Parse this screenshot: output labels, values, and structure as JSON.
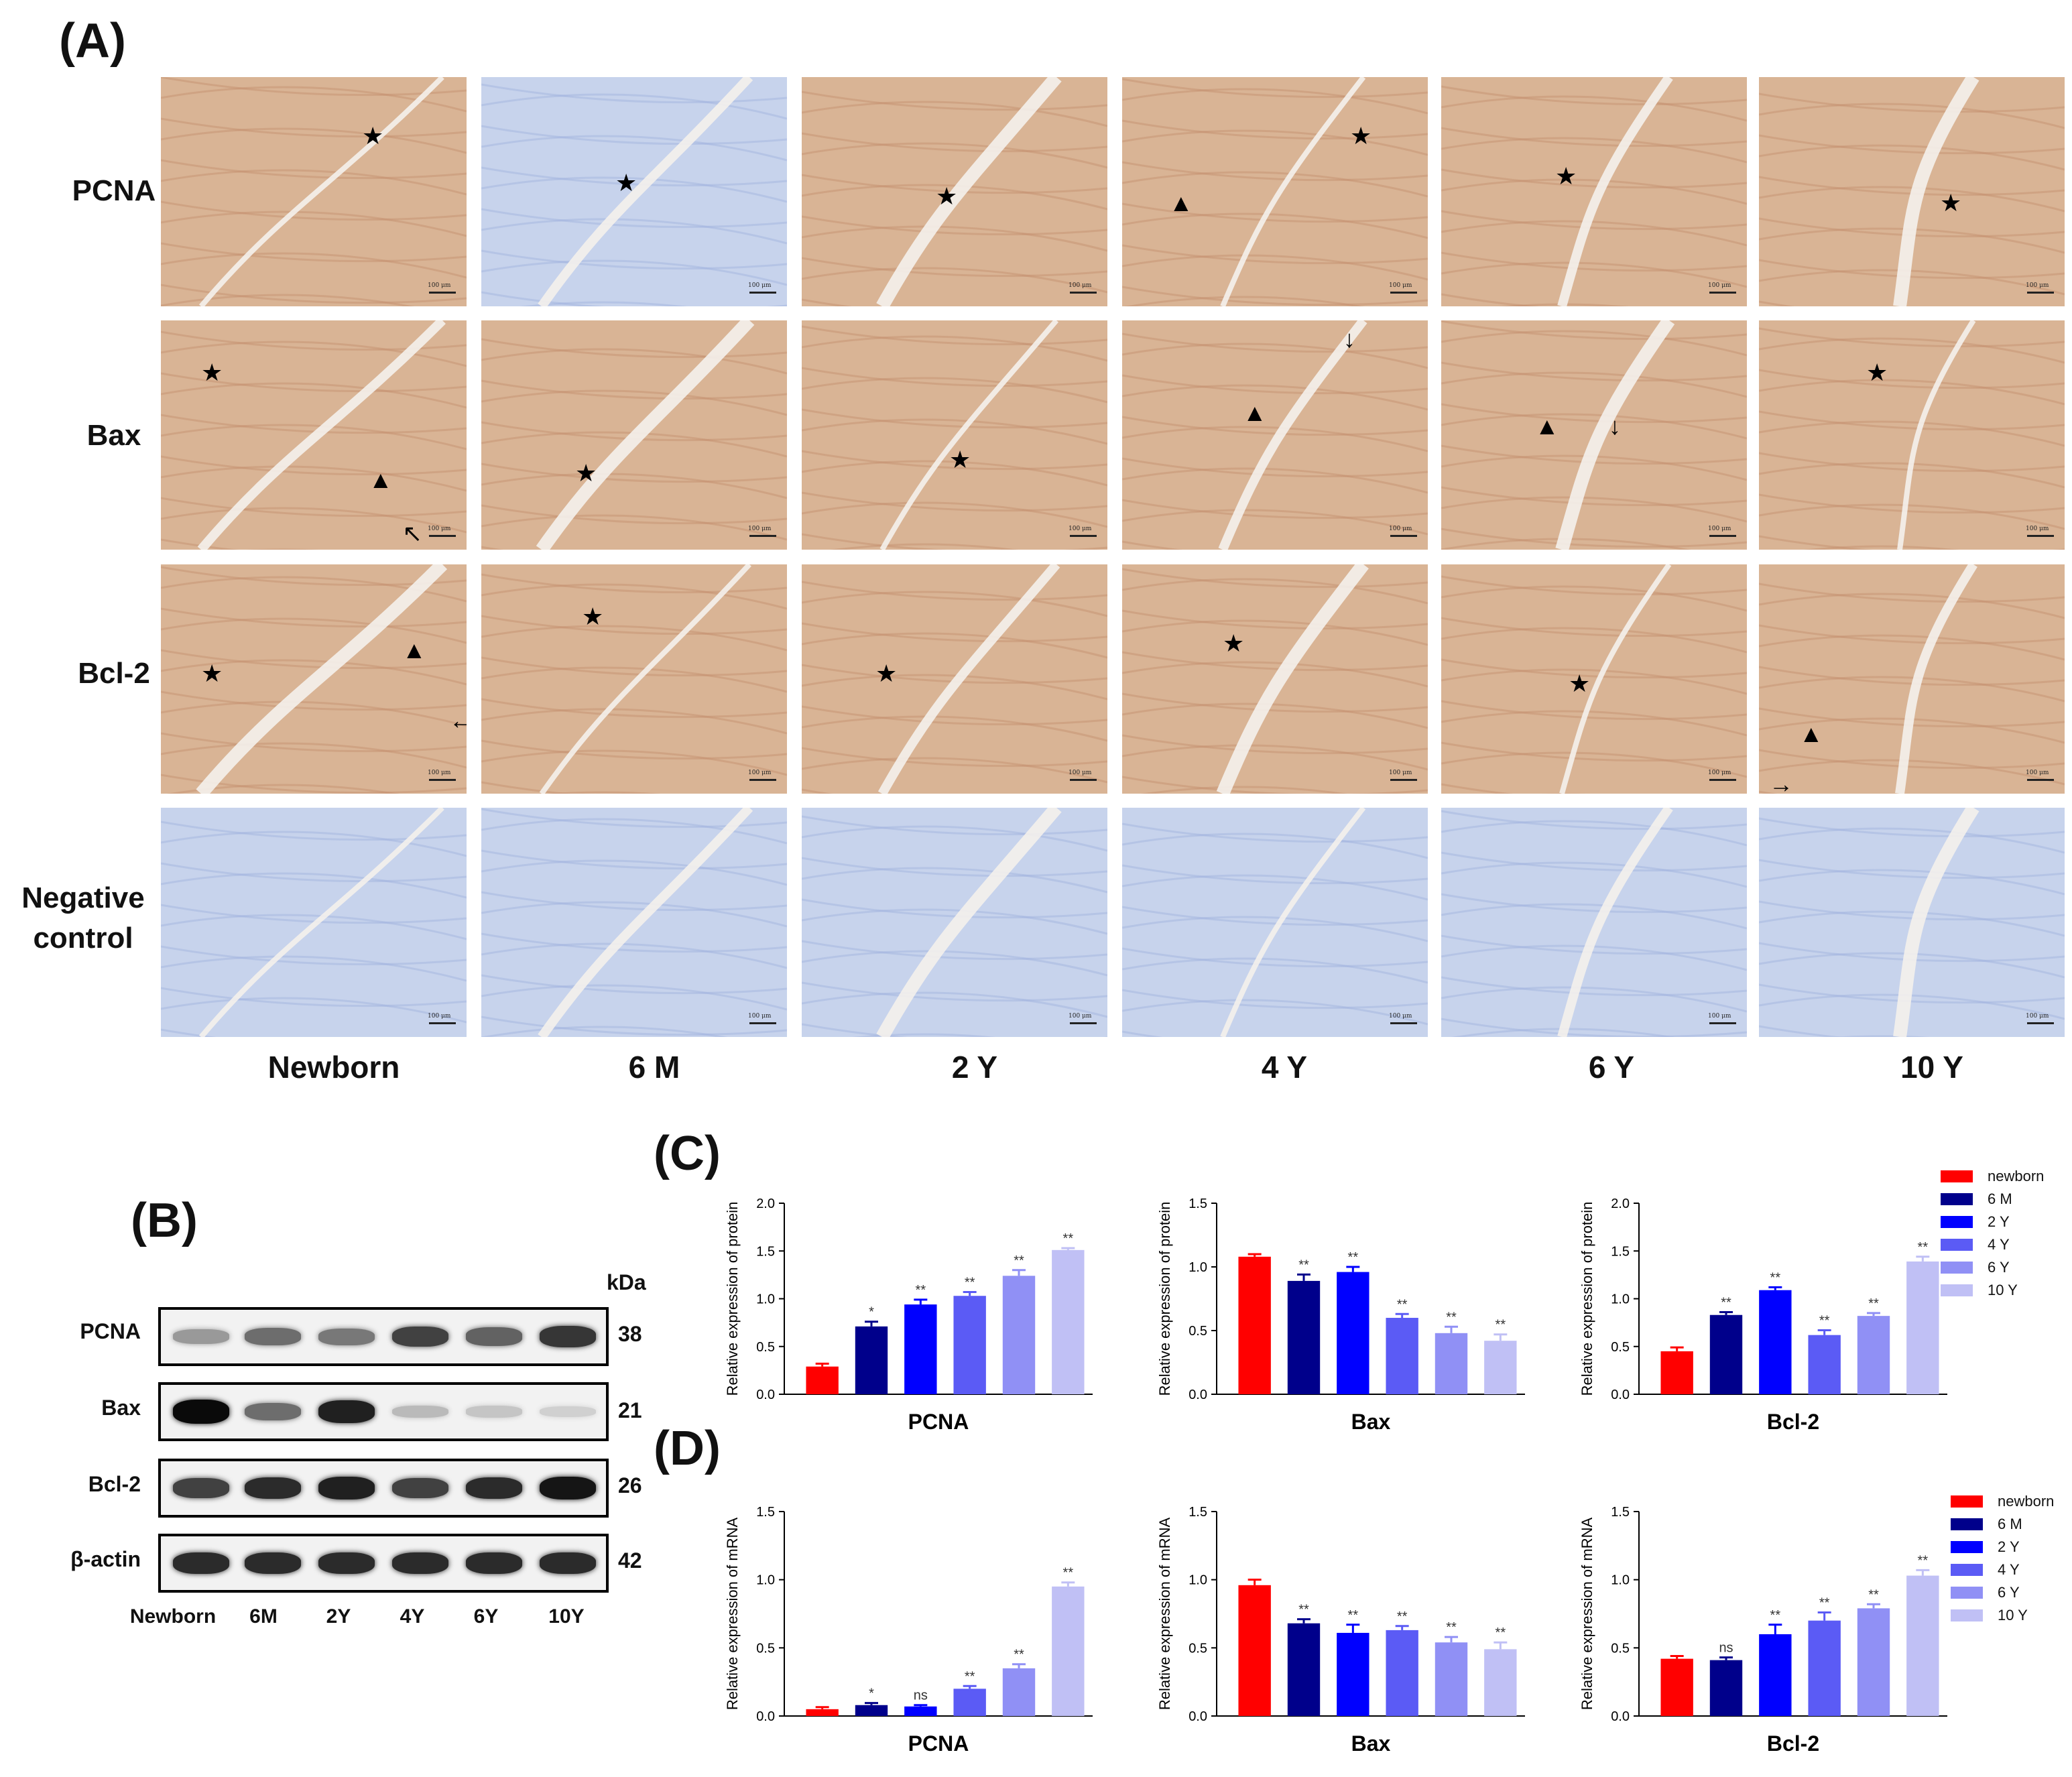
{
  "panels": {
    "A": "(A)",
    "B": "(B)",
    "C": "(C)",
    "D": "(D)"
  },
  "ihc": {
    "rows": [
      {
        "name": "PCNA",
        "label": "PCNA"
      },
      {
        "name": "Bax",
        "label": "Bax"
      },
      {
        "name": "Bcl-2",
        "label": "Bcl-2"
      },
      {
        "name": "Negative control",
        "label_lines": [
          "Negative",
          "control"
        ]
      }
    ],
    "columns": [
      "Newborn",
      "6 M",
      "2 Y",
      "4 Y",
      "6 Y",
      "10 Y"
    ],
    "scale_text": "100 μm",
    "colors": {
      "brown_stain": "#d9b495",
      "blue_stain": "#c7d3ec"
    }
  },
  "western": {
    "kda_label": "kDa",
    "rows": [
      {
        "label": "PCNA",
        "kda": "38",
        "intensity": [
          0.35,
          0.55,
          0.5,
          0.75,
          0.6,
          0.8
        ]
      },
      {
        "label": "Bax",
        "kda": "21",
        "intensity": [
          1.0,
          0.55,
          0.9,
          0.2,
          0.15,
          0.1
        ]
      },
      {
        "label": "Bcl-2",
        "kda": "26",
        "intensity": [
          0.75,
          0.85,
          0.9,
          0.75,
          0.85,
          0.95
        ]
      },
      {
        "label": "β-actin",
        "kda": "42",
        "intensity": [
          0.85,
          0.85,
          0.85,
          0.85,
          0.85,
          0.85
        ]
      }
    ],
    "lanes": [
      "Newborn",
      "6M",
      "2Y",
      "4Y",
      "6Y",
      "10Y"
    ]
  },
  "legend": {
    "entries": [
      "newborn",
      "6 M",
      "2 Y",
      "4 Y",
      "6 Y",
      "10 Y"
    ],
    "colors": [
      "#ff0000",
      "#00008b",
      "#0000ff",
      "#5b5bf5",
      "#9090f5",
      "#c0c0f5"
    ]
  },
  "chart_data": [
    {
      "type": "bar",
      "title": "PCNA",
      "ylabel": "Relative expression of protein",
      "ylim": [
        0,
        2.0
      ],
      "yticks": [
        "0.0",
        "0.5",
        "1.0",
        "1.5",
        "2.0"
      ],
      "categories": [
        "newborn",
        "6 M",
        "2 Y",
        "4 Y",
        "6 Y",
        "10 Y"
      ],
      "values": [
        0.29,
        0.71,
        0.94,
        1.03,
        1.24,
        1.51
      ],
      "errors": [
        0.03,
        0.05,
        0.05,
        0.04,
        0.06,
        0.02
      ],
      "annotations": [
        "",
        "*",
        "**",
        "**",
        "**",
        "**"
      ]
    },
    {
      "type": "bar",
      "title": "Bax",
      "ylabel": "Relative expression of protein",
      "ylim": [
        0,
        1.5
      ],
      "yticks": [
        "0.0",
        "0.5",
        "1.0",
        "1.5"
      ],
      "categories": [
        "newborn",
        "6 M",
        "2 Y",
        "4 Y",
        "6 Y",
        "10 Y"
      ],
      "values": [
        1.08,
        0.89,
        0.96,
        0.6,
        0.48,
        0.42
      ],
      "errors": [
        0.02,
        0.05,
        0.04,
        0.03,
        0.05,
        0.05
      ],
      "annotations": [
        "",
        "**",
        "**",
        "**",
        "**",
        "**"
      ]
    },
    {
      "type": "bar",
      "title": "Bcl-2",
      "ylabel": "Relative expression of protein",
      "ylim": [
        0,
        2.0
      ],
      "yticks": [
        "0.0",
        "0.5",
        "1.0",
        "1.5",
        "2.0"
      ],
      "categories": [
        "newborn",
        "6 M",
        "2 Y",
        "4 Y",
        "6 Y",
        "10 Y"
      ],
      "values": [
        0.45,
        0.83,
        1.09,
        0.62,
        0.82,
        1.39
      ],
      "errors": [
        0.04,
        0.03,
        0.03,
        0.05,
        0.03,
        0.05
      ],
      "annotations": [
        "",
        "**",
        "**",
        "**",
        "**",
        "**"
      ]
    },
    {
      "type": "bar",
      "title": "PCNA",
      "ylabel": "Relative expression of mRNA",
      "ylim": [
        0,
        1.5
      ],
      "yticks": [
        "0.0",
        "0.5",
        "1.0",
        "1.5"
      ],
      "categories": [
        "newborn",
        "6 M",
        "2 Y",
        "4 Y",
        "6 Y",
        "10 Y"
      ],
      "values": [
        0.05,
        0.08,
        0.07,
        0.2,
        0.35,
        0.95
      ],
      "errors": [
        0.015,
        0.015,
        0.01,
        0.02,
        0.03,
        0.03
      ],
      "annotations": [
        "",
        "*",
        "ns",
        "**",
        "**",
        "**"
      ]
    },
    {
      "type": "bar",
      "title": "Bax",
      "ylabel": "Relative expression of mRNA",
      "ylim": [
        0,
        1.5
      ],
      "yticks": [
        "0.0",
        "0.5",
        "1.0",
        "1.5"
      ],
      "categories": [
        "newborn",
        "6 M",
        "2 Y",
        "4 Y",
        "6 Y",
        "10 Y"
      ],
      "values": [
        0.96,
        0.68,
        0.61,
        0.63,
        0.54,
        0.49
      ],
      "errors": [
        0.04,
        0.03,
        0.06,
        0.03,
        0.04,
        0.05
      ],
      "annotations": [
        "",
        "**",
        "**",
        "**",
        "**",
        "**"
      ]
    },
    {
      "type": "bar",
      "title": "Bcl-2",
      "ylabel": "Relative expression of mRNA",
      "ylim": [
        0,
        1.5
      ],
      "yticks": [
        "0.0",
        "0.5",
        "1.0",
        "1.5"
      ],
      "categories": [
        "newborn",
        "6 M",
        "2 Y",
        "4 Y",
        "6 Y",
        "10 Y"
      ],
      "values": [
        0.42,
        0.41,
        0.6,
        0.7,
        0.79,
        1.03
      ],
      "errors": [
        0.02,
        0.02,
        0.07,
        0.06,
        0.03,
        0.04
      ],
      "annotations": [
        "",
        "ns",
        "**",
        "**",
        "**",
        "**"
      ]
    }
  ]
}
